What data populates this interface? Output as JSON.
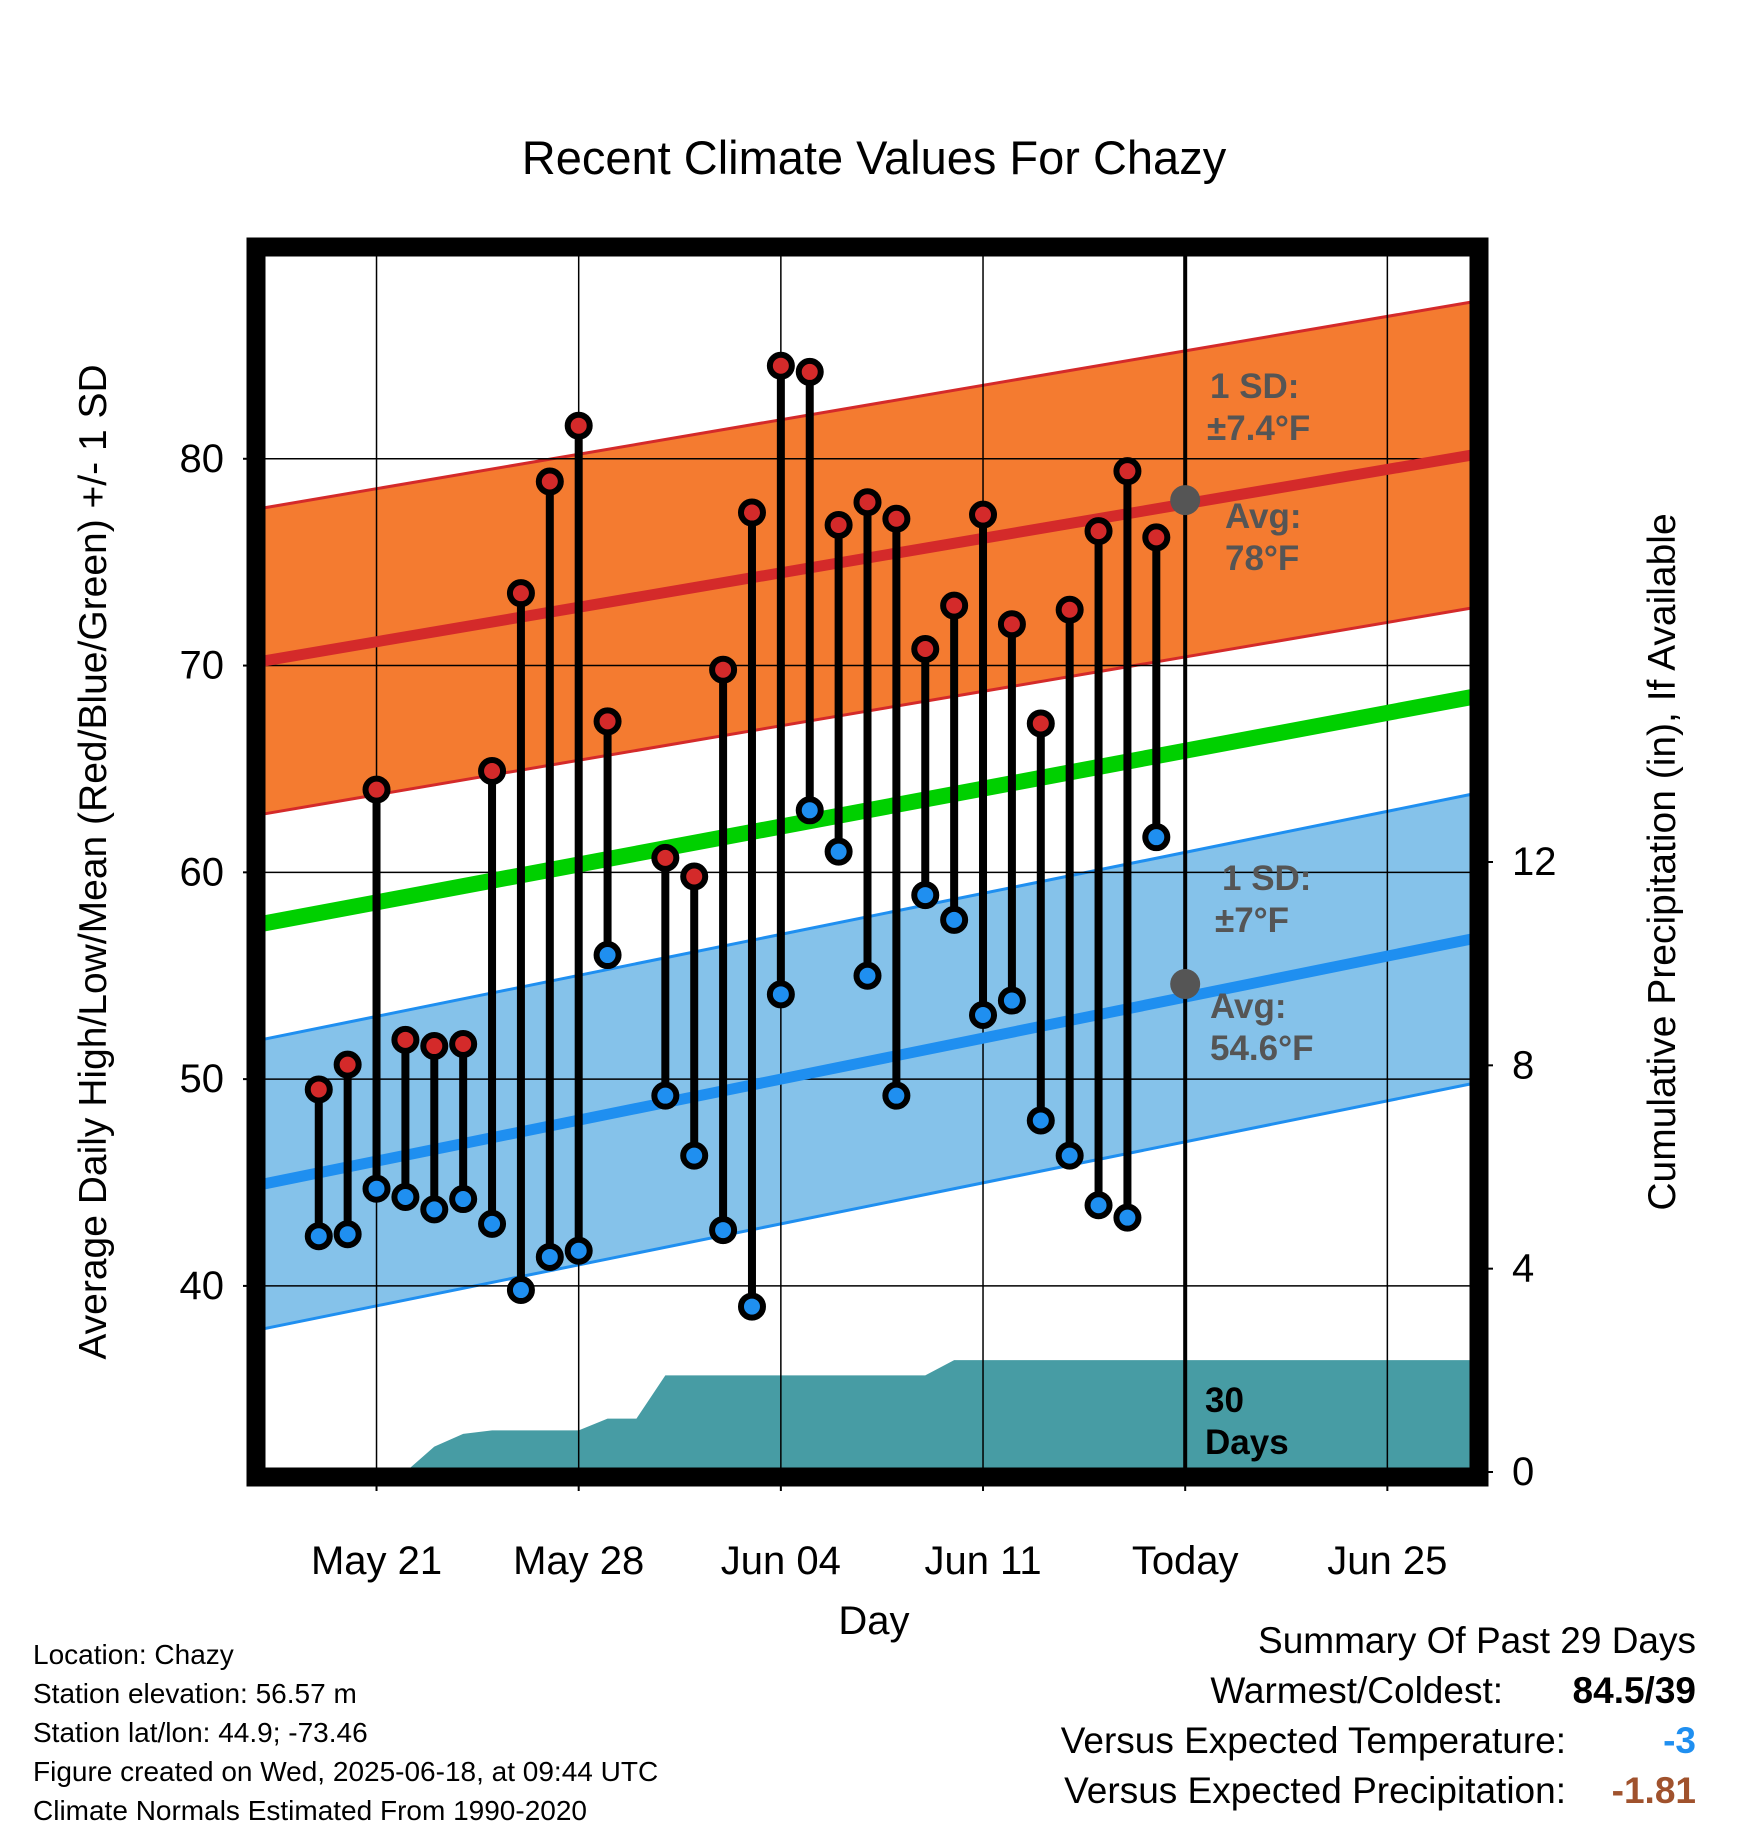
{
  "chart_data": {
    "type": "line",
    "title": "Recent Climate Values For Chazy",
    "xlabel": "Day",
    "ylabel": "Average Daily High/Low/Mean (Red/Blue/Green) +/- 1 SD",
    "y2label": "Cumulative Precipitation (in), If Available",
    "xlim_days": [
      -32,
      10
    ],
    "ylim": [
      31,
      90
    ],
    "y2lim": [
      0,
      24
    ],
    "grid": true,
    "x_ticks": [
      {
        "day": -28,
        "label": "May 21"
      },
      {
        "day": -21,
        "label": "May 28"
      },
      {
        "day": -14,
        "label": "Jun 04"
      },
      {
        "day": -7,
        "label": "Jun 11"
      },
      {
        "day": 0,
        "label": "Today"
      },
      {
        "day": 7,
        "label": "Jun 25"
      }
    ],
    "y_ticks": [
      40,
      50,
      60,
      70,
      80
    ],
    "y2_ticks": [
      0,
      4,
      8,
      12
    ],
    "daily": [
      {
        "day": -30,
        "high": 49.5,
        "low": 42.4
      },
      {
        "day": -29,
        "high": 50.7,
        "low": 42.5
      },
      {
        "day": -28,
        "high": 64.0,
        "low": 44.7
      },
      {
        "day": -27,
        "high": 51.9,
        "low": 44.3
      },
      {
        "day": -26,
        "high": 51.6,
        "low": 43.7
      },
      {
        "day": -25,
        "high": 51.7,
        "low": 44.2
      },
      {
        "day": -24,
        "high": 64.9,
        "low": 43.0
      },
      {
        "day": -23,
        "high": 73.5,
        "low": 39.8
      },
      {
        "day": -22,
        "high": 78.9,
        "low": 41.4
      },
      {
        "day": -21,
        "high": 81.6,
        "low": 41.7
      },
      {
        "day": -20,
        "high": 67.3,
        "low": 56.0
      },
      {
        "day": -18,
        "high": 60.7,
        "low": 49.2
      },
      {
        "day": -17,
        "high": 59.8,
        "low": 46.3
      },
      {
        "day": -16,
        "high": 69.8,
        "low": 42.7
      },
      {
        "day": -15,
        "high": 77.4,
        "low": 39.0
      },
      {
        "day": -14,
        "high": 84.5,
        "low": 54.1
      },
      {
        "day": -13,
        "high": 84.2,
        "low": 63.0
      },
      {
        "day": -12,
        "high": 76.8,
        "low": 61.0
      },
      {
        "day": -11,
        "high": 77.9,
        "low": 55.0
      },
      {
        "day": -10,
        "high": 77.1,
        "low": 49.2
      },
      {
        "day": -9,
        "high": 70.8,
        "low": 58.9
      },
      {
        "day": -8,
        "high": 72.9,
        "low": 57.7
      },
      {
        "day": -7,
        "high": 77.3,
        "low": 53.1
      },
      {
        "day": -6,
        "high": 72.0,
        "low": 53.8
      },
      {
        "day": -5,
        "high": 67.2,
        "low": 48.0
      },
      {
        "day": -4,
        "high": 72.7,
        "low": 46.3
      },
      {
        "day": -3,
        "high": 76.5,
        "low": 43.9
      },
      {
        "day": -2,
        "high": 79.4,
        "low": 43.3
      },
      {
        "day": -1,
        "high": 76.2,
        "low": 61.7
      }
    ],
    "normals": {
      "days": [
        -32,
        10
      ],
      "avg_high": [
        70.2,
        80.2
      ],
      "high_sd": 7.4,
      "avg_low": [
        44.9,
        56.8
      ],
      "low_sd": 7,
      "avg_mean": [
        57.5,
        68.5
      ]
    },
    "precip_cumulative": [
      {
        "day": -32,
        "value": 0
      },
      {
        "day": -27,
        "value": 0
      },
      {
        "day": -26,
        "value": 0.5
      },
      {
        "day": -25,
        "value": 0.75
      },
      {
        "day": -24,
        "value": 0.82
      },
      {
        "day": -21,
        "value": 0.82
      },
      {
        "day": -20,
        "value": 1.05
      },
      {
        "day": -19,
        "value": 1.05
      },
      {
        "day": -18,
        "value": 1.9
      },
      {
        "day": -9,
        "value": 1.9
      },
      {
        "day": -8,
        "value": 2.2
      },
      {
        "day": 10,
        "value": 2.2
      }
    ],
    "today_markers": {
      "high_avg": 78,
      "low_avg": 54.6
    },
    "annotations": {
      "high_sd_label": "1 SD:",
      "high_sd_value": "±7.4°F",
      "high_avg_label": "Avg:",
      "high_avg_value": "78°F",
      "low_sd_label": "1 SD:",
      "low_sd_value": "±7°F",
      "low_avg_label": "Avg:",
      "low_avg_value": "54.6°F",
      "days_label_1": "30",
      "days_label_2": "Days"
    },
    "colors": {
      "high_band": "#f47b30",
      "high_line": "#d42a2a",
      "low_band": "#85c2ea",
      "low_line": "#1f8ff0",
      "mean_line": "#00d000",
      "precip": "#479ca4",
      "high_marker": "#d42a2a",
      "low_marker": "#1f8ff0",
      "annotation": "#555555",
      "today_marker": "#555555"
    }
  },
  "info": {
    "location": "Location: Chazy",
    "elevation": "Station elevation: 56.57 m",
    "latlon": "Station lat/lon: 44.9; -73.46",
    "created": "Figure created on Wed, 2025-06-18, at 09:44 UTC",
    "normals": "Climate Normals Estimated From 1990-2020"
  },
  "summary": {
    "title": "Summary Of Past 29 Days",
    "warm_cold_label": "Warmest/Coldest:",
    "warm_cold_value": "84.5/39",
    "temp_label": "Versus Expected Temperature:",
    "temp_value": "-3",
    "temp_color": "#1f8ff0",
    "precip_label": "Versus Expected Precipitation:",
    "precip_value": "-1.81",
    "precip_color": "#a0522d"
  }
}
